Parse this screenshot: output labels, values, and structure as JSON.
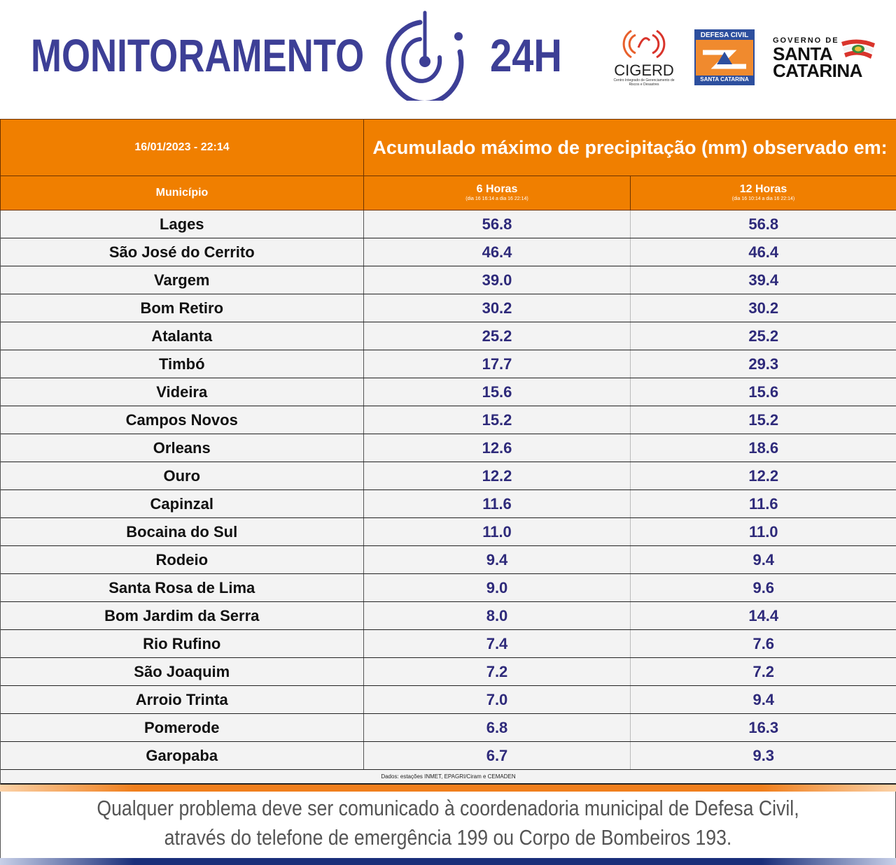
{
  "header": {
    "title": "MONITORAMENTO",
    "title_suffix": "24H",
    "logos": {
      "cigerd": {
        "name": "CIGERD",
        "subtitle": "Centro Integrado de Gerenciamento de Riscos e Desastres"
      },
      "defesa_civil": {
        "top": "DEFESA CIVIL",
        "bottom": "SANTA CATARINA"
      },
      "governo": {
        "line1": "GOVERNO DE",
        "line2": "SANTA",
        "line3": "CATARINA"
      }
    }
  },
  "table": {
    "datetime": "16/01/2023 - 22:14",
    "title": "Acumulado máximo de precipitação (mm) observado em:",
    "columns": {
      "municipio": "Município",
      "h6": {
        "label": "6 Horas",
        "range": "(dia 16 16:14 a dia 16 22:14)"
      },
      "h12": {
        "label": "12 Horas",
        "range": "(dia 16 10:14 a dia 16 22:14)"
      }
    },
    "rows": [
      {
        "municipio": "Lages",
        "h6": "56.8",
        "h12": "56.8"
      },
      {
        "municipio": "São José do Cerrito",
        "h6": "46.4",
        "h12": "46.4"
      },
      {
        "municipio": "Vargem",
        "h6": "39.0",
        "h12": "39.4"
      },
      {
        "municipio": "Bom Retiro",
        "h6": "30.2",
        "h12": "30.2"
      },
      {
        "municipio": "Atalanta",
        "h6": "25.2",
        "h12": "25.2"
      },
      {
        "municipio": "Timbó",
        "h6": "17.7",
        "h12": "29.3"
      },
      {
        "municipio": "Videira",
        "h6": "15.6",
        "h12": "15.6"
      },
      {
        "municipio": "Campos Novos",
        "h6": "15.2",
        "h12": "15.2"
      },
      {
        "municipio": "Orleans",
        "h6": "12.6",
        "h12": "18.6"
      },
      {
        "municipio": "Ouro",
        "h6": "12.2",
        "h12": "12.2"
      },
      {
        "municipio": "Capinzal",
        "h6": "11.6",
        "h12": "11.6"
      },
      {
        "municipio": "Bocaina do Sul",
        "h6": "11.0",
        "h12": "11.0"
      },
      {
        "municipio": "Rodeio",
        "h6": "9.4",
        "h12": "9.4"
      },
      {
        "municipio": "Santa Rosa de Lima",
        "h6": "9.0",
        "h12": "9.6"
      },
      {
        "municipio": "Bom Jardim da Serra",
        "h6": "8.0",
        "h12": "14.4"
      },
      {
        "municipio": "Rio Rufino",
        "h6": "7.4",
        "h12": "7.6"
      },
      {
        "municipio": "São Joaquim",
        "h6": "7.2",
        "h12": "7.2"
      },
      {
        "municipio": "Arroio Trinta",
        "h6": "7.0",
        "h12": "9.4"
      },
      {
        "municipio": "Pomerode",
        "h6": "6.8",
        "h12": "16.3"
      },
      {
        "municipio": "Garopaba",
        "h6": "6.7",
        "h12": "9.3"
      }
    ],
    "source": "Dados: estações INMET, EPAGRI/Ciram e CEMADEN"
  },
  "footer": {
    "line1": "Qualquer problema deve ser comunicado à coordenadoria municipal de Defesa Civil,",
    "line2": "através do telefone de emergência 199 ou Corpo de Bombeiros 193."
  },
  "colors": {
    "brand_blue": "#3d3f96",
    "header_orange": "#f07f00",
    "value_blue": "#2e2a7a"
  }
}
